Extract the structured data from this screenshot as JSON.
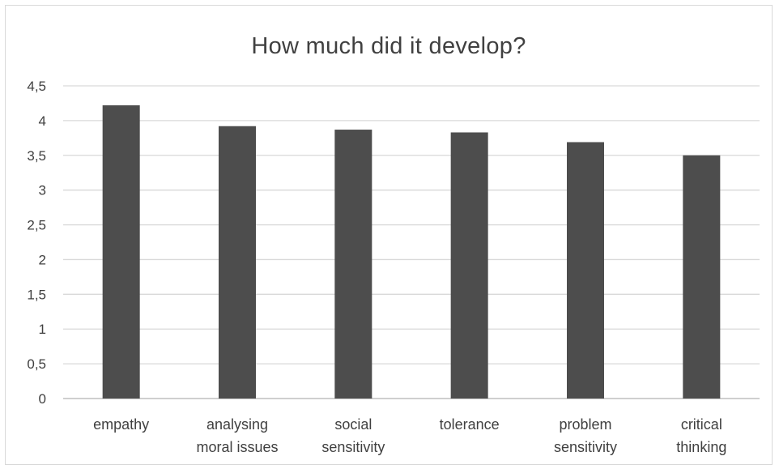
{
  "chart_data": {
    "type": "bar",
    "title": "How much did it develop?",
    "xlabel": "",
    "ylabel": "",
    "categories": [
      [
        "empathy"
      ],
      [
        "analysing",
        "moral issues"
      ],
      [
        "social",
        "sensitivity"
      ],
      [
        "tolerance"
      ],
      [
        "problem",
        "sensitivity"
      ],
      [
        "critical",
        "thinking"
      ]
    ],
    "values": [
      4.22,
      3.92,
      3.87,
      3.83,
      3.69,
      3.5
    ],
    "ylim": [
      0,
      4.5
    ],
    "yticks": [
      0,
      0.5,
      1,
      1.5,
      2,
      2.5,
      3,
      3.5,
      4,
      4.5
    ],
    "ytick_labels": [
      "0",
      "0,5",
      "1",
      "1,5",
      "2",
      "2,5",
      "3",
      "3,5",
      "4",
      "4,5"
    ],
    "grid": true,
    "legend": "none",
    "colors": {
      "bar": "#4d4d4d",
      "grid": "#d9d9d9",
      "axis": "#bfbfbf",
      "text": "#404040"
    }
  }
}
